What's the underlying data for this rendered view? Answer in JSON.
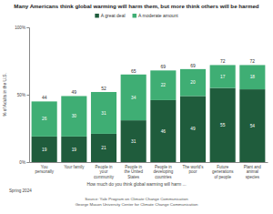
{
  "chart_data": {
    "type": "bar",
    "stacked": true,
    "data_labels": true,
    "grid": false,
    "title": "Many Americans think global warming will harm them, but more think others will be harmed",
    "ylabel": "% of Adults in the U.S.",
    "xlabel": "How much do you think global warming will harm ...",
    "annotations": [
      "Spring 2024"
    ],
    "source": [
      "Source: Yale Program on Climate Change Communication",
      "George Mason University Center for Climate Change Communication"
    ],
    "categories": [
      "You personally",
      "Your family",
      "People in your community",
      "People in the United States",
      "People in developing countries",
      "The world's poor",
      "Future generations of people",
      "Plant and animal species"
    ],
    "series": [
      {
        "name": "A great deal",
        "color": "#1f5c3c",
        "values": [
          19,
          19,
          21,
          31,
          46,
          49,
          55,
          54
        ]
      },
      {
        "name": "A moderate amount",
        "color": "#3fae74",
        "values": [
          26,
          30,
          31,
          34,
          22,
          20,
          17,
          18
        ]
      }
    ],
    "totals": [
      44,
      49,
      52,
      65,
      69,
      69,
      72,
      72
    ],
    "ylim": [
      0,
      100
    ],
    "yticks": [
      {
        "value": 0,
        "label": "0%"
      },
      {
        "value": 50,
        "label": "50%"
      },
      {
        "value": 100,
        "label": "100%"
      }
    ]
  }
}
